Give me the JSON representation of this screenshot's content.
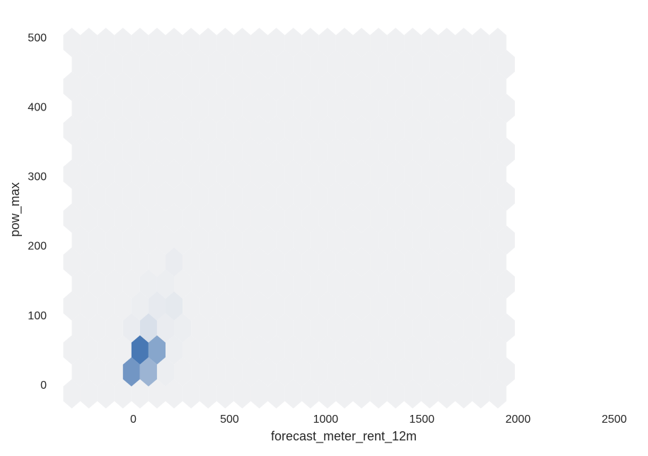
{
  "chart_data": {
    "type": "hexbin",
    "xlabel": "forecast_meter_rent_12m",
    "ylabel": "pow_max",
    "xlim": [
      -330,
      2530
    ],
    "ylim": [
      -25,
      525
    ],
    "x_ticks": [
      "0",
      "500",
      "1000",
      "1500",
      "2000",
      "2500"
    ],
    "x_tick_values": [
      0,
      500,
      1000,
      1500,
      2000,
      2500
    ],
    "y_ticks": [
      "0",
      "100",
      "200",
      "300",
      "400",
      "500"
    ],
    "y_tick_values": [
      0,
      100,
      200,
      300,
      400,
      500
    ],
    "grid": false,
    "hex_grid": {
      "x_origin": -320,
      "x_step": 88.6,
      "y_origin": -13.4,
      "y_step": 31.6,
      "odd_row_offset": 44.3,
      "columns": 26,
      "rows": 18
    },
    "colors": {
      "background_hex": "#eff0f2",
      "dark": "#4878b4",
      "light": "#eff0f2"
    },
    "bins": [
      {
        "x": 0,
        "y": 4.5,
        "intensity": 0.75
      },
      {
        "x": 89,
        "y": 4.5,
        "intensity": 0.5
      },
      {
        "x": 44,
        "y": 36,
        "intensity": 1.0
      },
      {
        "x": 133,
        "y": 36,
        "intensity": 0.62
      },
      {
        "x": 89,
        "y": 68,
        "intensity": 0.13
      },
      {
        "x": 0,
        "y": 68,
        "intensity": 0.03
      },
      {
        "x": 177,
        "y": 68,
        "intensity": 0.03
      },
      {
        "x": 133,
        "y": 99,
        "intensity": 0.05
      },
      {
        "x": 222,
        "y": 99,
        "intensity": 0.06
      },
      {
        "x": 44,
        "y": 99,
        "intensity": 0.02
      },
      {
        "x": 177,
        "y": 131,
        "intensity": 0.02
      },
      {
        "x": 89,
        "y": 131,
        "intensity": 0.015
      },
      {
        "x": 222,
        "y": 162,
        "intensity": 0.03
      },
      {
        "x": 222,
        "y": 36,
        "intensity": 0.02
      },
      {
        "x": 266,
        "y": 68,
        "intensity": 0.015
      },
      {
        "x": 177,
        "y": 4.5,
        "intensity": 0.015
      }
    ]
  }
}
